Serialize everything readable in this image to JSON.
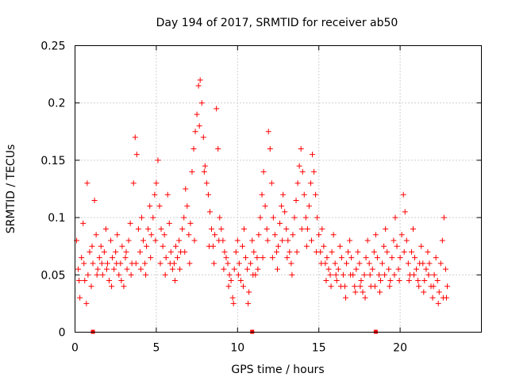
{
  "chart_data": {
    "type": "scatter",
    "title": "Day 194 of 2017, SRMTID for receiver ab50",
    "xlabel": "GPS time / hours",
    "ylabel": "SRMTID / TECUs",
    "xlim": [
      0,
      25
    ],
    "ylim": [
      0,
      0.25
    ],
    "xticks": [
      0,
      5,
      10,
      15,
      20
    ],
    "xtick_labels": [
      "0",
      "5",
      "10",
      "15",
      "20"
    ],
    "yticks": [
      0,
      0.05,
      0.1,
      0.15,
      0.2,
      0.25
    ],
    "ytick_labels": [
      "0",
      "0.05",
      "0.1",
      "0.15",
      "0.2",
      "0.25"
    ],
    "grid": true,
    "marker": "+",
    "color": "#ff0000",
    "series": [
      {
        "name": "SRMTID",
        "points": [
          [
            0.1,
            0.08
          ],
          [
            0.2,
            0.055
          ],
          [
            0.3,
            0.03
          ],
          [
            0.4,
            0.065
          ],
          [
            0.5,
            0.095
          ],
          [
            0.6,
            0.045
          ],
          [
            0.7,
            0.025
          ],
          [
            0.8,
            0.05
          ],
          [
            0.9,
            0.07
          ],
          [
            1.0,
            0.04
          ],
          [
            1.1,
            0.06
          ],
          [
            1.2,
            0.115
          ],
          [
            1.3,
            0.085
          ],
          [
            1.4,
            0.055
          ],
          [
            1.5,
            0.065
          ],
          [
            1.6,
            0.075
          ],
          [
            1.7,
            0.05
          ],
          [
            1.8,
            0.07
          ],
          [
            1.9,
            0.09
          ],
          [
            2.0,
            0.06
          ],
          [
            2.1,
            0.045
          ],
          [
            2.2,
            0.08
          ],
          [
            2.3,
            0.065
          ],
          [
            2.4,
            0.055
          ],
          [
            2.5,
            0.07
          ],
          [
            2.6,
            0.085
          ],
          [
            2.7,
            0.05
          ],
          [
            2.8,
            0.06
          ],
          [
            2.9,
            0.075
          ],
          [
            3.0,
            0.04
          ],
          [
            3.1,
            0.065
          ],
          [
            3.2,
            0.055
          ],
          [
            3.3,
            0.08
          ],
          [
            3.4,
            0.095
          ],
          [
            3.5,
            0.06
          ],
          [
            3.6,
            0.13
          ],
          [
            3.7,
            0.17
          ],
          [
            3.8,
            0.155
          ],
          [
            3.9,
            0.09
          ],
          [
            4.0,
            0.07
          ],
          [
            4.1,
            0.1
          ],
          [
            4.2,
            0.08
          ],
          [
            4.3,
            0.06
          ],
          [
            4.4,
            0.075
          ],
          [
            4.5,
            0.09
          ],
          [
            4.6,
            0.11
          ],
          [
            4.7,
            0.085
          ],
          [
            4.8,
            0.1
          ],
          [
            4.9,
            0.12
          ],
          [
            5.0,
            0.13
          ],
          [
            5.1,
            0.15
          ],
          [
            5.2,
            0.11
          ],
          [
            5.3,
            0.09
          ],
          [
            5.4,
            0.075
          ],
          [
            5.5,
            0.085
          ],
          [
            5.6,
            0.065
          ],
          [
            5.7,
            0.12
          ],
          [
            5.8,
            0.095
          ],
          [
            5.9,
            0.07
          ],
          [
            6.0,
            0.055
          ],
          [
            6.1,
            0.06
          ],
          [
            6.2,
            0.075
          ],
          [
            6.3,
            0.065
          ],
          [
            6.4,
            0.08
          ],
          [
            6.5,
            0.07
          ],
          [
            6.6,
            0.09
          ],
          [
            6.7,
            0.1
          ],
          [
            6.8,
            0.125
          ],
          [
            6.9,
            0.11
          ],
          [
            7.0,
            0.085
          ],
          [
            7.1,
            0.095
          ],
          [
            7.2,
            0.14
          ],
          [
            7.3,
            0.16
          ],
          [
            7.4,
            0.175
          ],
          [
            7.5,
            0.19
          ],
          [
            7.6,
            0.215
          ],
          [
            7.7,
            0.22
          ],
          [
            7.8,
            0.2
          ],
          [
            7.9,
            0.17
          ],
          [
            8.0,
            0.145
          ],
          [
            8.1,
            0.13
          ],
          [
            8.2,
            0.12
          ],
          [
            8.3,
            0.105
          ],
          [
            8.4,
            0.09
          ],
          [
            8.5,
            0.075
          ],
          [
            8.6,
            0.085
          ],
          [
            8.7,
            0.195
          ],
          [
            8.8,
            0.16
          ],
          [
            8.9,
            0.1
          ],
          [
            9.0,
            0.09
          ],
          [
            9.1,
            0.08
          ],
          [
            9.2,
            0.07
          ],
          [
            9.3,
            0.065
          ],
          [
            9.4,
            0.06
          ],
          [
            9.5,
            0.05
          ],
          [
            9.6,
            0.045
          ],
          [
            9.7,
            0.03
          ],
          [
            9.8,
            0.055
          ],
          [
            9.9,
            0.07
          ],
          [
            10.0,
            0.08
          ],
          [
            10.1,
            0.06
          ],
          [
            10.2,
            0.045
          ],
          [
            10.3,
            0.075
          ],
          [
            10.4,
            0.09
          ],
          [
            10.5,
            0.065
          ],
          [
            10.6,
            0.055
          ],
          [
            10.7,
            0.035
          ],
          [
            10.8,
            0.06
          ],
          [
            10.9,
            0.08
          ],
          [
            11.0,
            0.07
          ],
          [
            11.1,
            0.05
          ],
          [
            11.2,
            0.065
          ],
          [
            11.3,
            0.085
          ],
          [
            11.4,
            0.1
          ],
          [
            11.5,
            0.12
          ],
          [
            11.6,
            0.14
          ],
          [
            11.7,
            0.11
          ],
          [
            11.8,
            0.09
          ],
          [
            11.9,
            0.175
          ],
          [
            12.0,
            0.16
          ],
          [
            12.1,
            0.13
          ],
          [
            12.2,
            0.1
          ],
          [
            12.3,
            0.085
          ],
          [
            12.4,
            0.07
          ],
          [
            12.5,
            0.075
          ],
          [
            12.6,
            0.095
          ],
          [
            12.7,
            0.11
          ],
          [
            12.8,
            0.12
          ],
          [
            12.9,
            0.105
          ],
          [
            13.0,
            0.09
          ],
          [
            13.1,
            0.08
          ],
          [
            13.2,
            0.07
          ],
          [
            13.3,
            0.06
          ],
          [
            13.4,
            0.085
          ],
          [
            13.5,
            0.1
          ],
          [
            13.6,
            0.115
          ],
          [
            13.7,
            0.13
          ],
          [
            13.8,
            0.145
          ],
          [
            13.9,
            0.16
          ],
          [
            14.0,
            0.14
          ],
          [
            14.1,
            0.12
          ],
          [
            14.2,
            0.1
          ],
          [
            14.3,
            0.09
          ],
          [
            14.4,
            0.11
          ],
          [
            14.5,
            0.13
          ],
          [
            14.6,
            0.155
          ],
          [
            14.7,
            0.14
          ],
          [
            14.8,
            0.12
          ],
          [
            14.9,
            0.1
          ],
          [
            15.0,
            0.085
          ],
          [
            15.1,
            0.07
          ],
          [
            15.2,
            0.09
          ],
          [
            15.3,
            0.075
          ],
          [
            15.4,
            0.06
          ],
          [
            15.5,
            0.065
          ],
          [
            15.6,
            0.055
          ],
          [
            15.7,
            0.05
          ],
          [
            15.8,
            0.07
          ],
          [
            15.9,
            0.085
          ],
          [
            16.0,
            0.06
          ],
          [
            16.1,
            0.045
          ],
          [
            16.2,
            0.055
          ],
          [
            16.3,
            0.075
          ],
          [
            16.4,
            0.065
          ],
          [
            16.5,
            0.05
          ],
          [
            16.6,
            0.04
          ],
          [
            16.7,
            0.06
          ],
          [
            16.8,
            0.07
          ],
          [
            16.9,
            0.08
          ],
          [
            17.0,
            0.065
          ],
          [
            17.1,
            0.05
          ],
          [
            17.2,
            0.04
          ],
          [
            17.3,
            0.055
          ],
          [
            17.4,
            0.07
          ],
          [
            17.5,
            0.06
          ],
          [
            17.6,
            0.045
          ],
          [
            17.7,
            0.035
          ],
          [
            17.8,
            0.05
          ],
          [
            17.9,
            0.065
          ],
          [
            18.0,
            0.08
          ],
          [
            18.1,
            0.06
          ],
          [
            18.2,
            0.04
          ],
          [
            18.3,
            0.055
          ],
          [
            18.4,
            0.07
          ],
          [
            18.5,
            0.085
          ],
          [
            18.6,
            0.065
          ],
          [
            18.7,
            0.05
          ],
          [
            18.8,
            0.045
          ],
          [
            18.9,
            0.06
          ],
          [
            19.0,
            0.075
          ],
          [
            19.1,
            0.09
          ],
          [
            19.2,
            0.07
          ],
          [
            19.3,
            0.055
          ],
          [
            19.4,
            0.045
          ],
          [
            19.5,
            0.065
          ],
          [
            19.6,
            0.08
          ],
          [
            19.7,
            0.1
          ],
          [
            19.8,
            0.075
          ],
          [
            19.9,
            0.055
          ],
          [
            20.0,
            0.065
          ],
          [
            20.1,
            0.085
          ],
          [
            20.2,
            0.12
          ],
          [
            20.3,
            0.105
          ],
          [
            20.4,
            0.08
          ],
          [
            20.5,
            0.06
          ],
          [
            20.6,
            0.05
          ],
          [
            20.7,
            0.07
          ],
          [
            20.8,
            0.09
          ],
          [
            20.9,
            0.065
          ],
          [
            21.0,
            0.055
          ],
          [
            21.1,
            0.045
          ],
          [
            21.2,
            0.06
          ],
          [
            21.3,
            0.075
          ],
          [
            21.4,
            0.06
          ],
          [
            21.5,
            0.045
          ],
          [
            21.6,
            0.055
          ],
          [
            21.7,
            0.07
          ],
          [
            21.8,
            0.06
          ],
          [
            21.9,
            0.04
          ],
          [
            22.0,
            0.03
          ],
          [
            22.1,
            0.05
          ],
          [
            22.2,
            0.065
          ],
          [
            22.3,
            0.045
          ],
          [
            22.4,
            0.035
          ],
          [
            22.5,
            0.06
          ],
          [
            22.6,
            0.08
          ],
          [
            22.7,
            0.1
          ],
          [
            22.8,
            0.055
          ],
          [
            22.9,
            0.04
          ],
          [
            0.25,
            0.045
          ],
          [
            0.55,
            0.06
          ],
          [
            0.75,
            0.13
          ],
          [
            1.05,
            0.075
          ],
          [
            1.35,
            0.05
          ],
          [
            1.65,
            0.06
          ],
          [
            1.95,
            0.055
          ],
          [
            2.25,
            0.04
          ],
          [
            2.55,
            0.06
          ],
          [
            2.85,
            0.045
          ],
          [
            3.15,
            0.07
          ],
          [
            3.45,
            0.05
          ],
          [
            3.75,
            0.06
          ],
          [
            4.05,
            0.055
          ],
          [
            4.35,
            0.05
          ],
          [
            4.65,
            0.065
          ],
          [
            4.95,
            0.08
          ],
          [
            5.25,
            0.06
          ],
          [
            5.55,
            0.05
          ],
          [
            5.85,
            0.06
          ],
          [
            6.15,
            0.045
          ],
          [
            6.45,
            0.055
          ],
          [
            6.75,
            0.07
          ],
          [
            7.05,
            0.06
          ],
          [
            7.35,
            0.08
          ],
          [
            7.65,
            0.18
          ],
          [
            7.95,
            0.14
          ],
          [
            8.25,
            0.075
          ],
          [
            8.55,
            0.06
          ],
          [
            8.85,
            0.08
          ],
          [
            9.15,
            0.055
          ],
          [
            9.45,
            0.04
          ],
          [
            9.75,
            0.025
          ],
          [
            10.05,
            0.05
          ],
          [
            10.35,
            0.04
          ],
          [
            10.65,
            0.025
          ],
          [
            10.95,
            0.05
          ],
          [
            11.25,
            0.055
          ],
          [
            11.55,
            0.065
          ],
          [
            11.85,
            0.08
          ],
          [
            12.15,
            0.065
          ],
          [
            12.45,
            0.055
          ],
          [
            12.75,
            0.08
          ],
          [
            13.05,
            0.065
          ],
          [
            13.35,
            0.05
          ],
          [
            13.65,
            0.07
          ],
          [
            13.95,
            0.09
          ],
          [
            14.25,
            0.075
          ],
          [
            14.55,
            0.08
          ],
          [
            14.85,
            0.07
          ],
          [
            15.15,
            0.06
          ],
          [
            15.45,
            0.045
          ],
          [
            15.75,
            0.04
          ],
          [
            16.05,
            0.05
          ],
          [
            16.35,
            0.04
          ],
          [
            16.65,
            0.03
          ],
          [
            16.95,
            0.05
          ],
          [
            17.25,
            0.035
          ],
          [
            17.55,
            0.04
          ],
          [
            17.85,
            0.03
          ],
          [
            18.15,
            0.05
          ],
          [
            18.45,
            0.04
          ],
          [
            18.75,
            0.035
          ],
          [
            19.05,
            0.05
          ],
          [
            19.35,
            0.04
          ],
          [
            19.65,
            0.05
          ],
          [
            19.95,
            0.045
          ],
          [
            20.25,
            0.07
          ],
          [
            20.55,
            0.045
          ],
          [
            20.85,
            0.05
          ],
          [
            21.15,
            0.04
          ],
          [
            21.45,
            0.035
          ],
          [
            21.75,
            0.05
          ],
          [
            22.05,
            0.04
          ],
          [
            22.35,
            0.025
          ],
          [
            22.65,
            0.03
          ],
          [
            22.85,
            0.03
          ]
        ]
      }
    ],
    "gap_markers_x": [
      1.1,
      10.9,
      18.5
    ]
  }
}
